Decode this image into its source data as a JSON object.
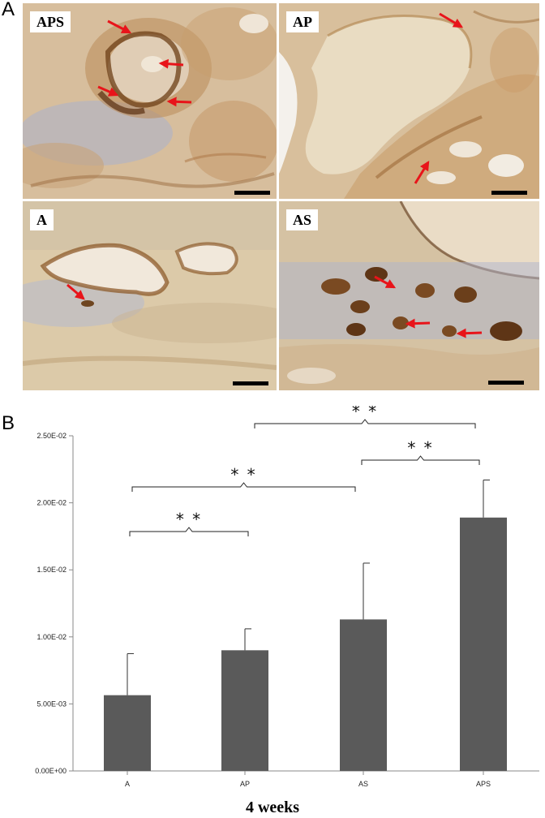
{
  "figure": {
    "panel_a_letter": "A",
    "panel_b_letter": "B"
  },
  "micrographs": [
    {
      "label": "APS"
    },
    {
      "label": "AP"
    },
    {
      "label": "A"
    },
    {
      "label": "AS"
    }
  ],
  "colors": {
    "bar": "#5a5a5a",
    "arrow": "#e8141a",
    "tissue_bg": "#e2d4bf",
    "stain_brown": "#8a5a2b",
    "counterstain_blue": "#8e98bf"
  },
  "chart_data": {
    "type": "bar",
    "categories": [
      "A",
      "AP",
      "AS",
      "APS"
    ],
    "values": [
      0.00565,
      0.009,
      0.0113,
      0.0189
    ],
    "errors": [
      0.0031,
      0.0016,
      0.0042,
      0.0028
    ],
    "ylim": [
      0,
      0.025
    ],
    "yticks": [
      0,
      0.005,
      0.01,
      0.015,
      0.02,
      0.025
    ],
    "ytick_labels": [
      "0.00E+00",
      "5.00E-03",
      "1.00E-02",
      "1.50E-02",
      "2.00E-02",
      "2.50E-02"
    ],
    "xlabel": "4 weeks",
    "significance": [
      {
        "from": "A",
        "to": "AP",
        "label": "* *"
      },
      {
        "from": "A",
        "to": "AS",
        "label": "* *"
      },
      {
        "from": "AS",
        "to": "APS",
        "label": "* *"
      },
      {
        "from": "AP",
        "to": "APS",
        "label": "* *"
      }
    ],
    "grid": false
  }
}
